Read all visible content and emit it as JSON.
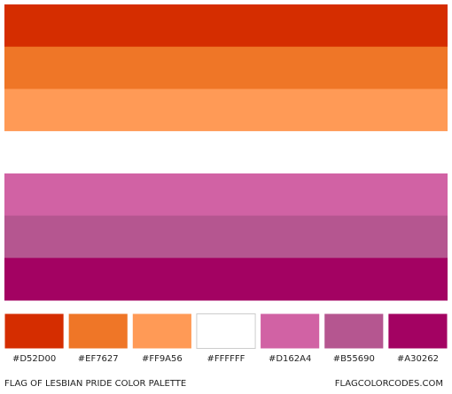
{
  "palette": {
    "colors": [
      "#D52D00",
      "#EF7627",
      "#FF9A56",
      "#FFFFFF",
      "#D162A4",
      "#B55690",
      "#A30262"
    ],
    "caption": "FLAG OF LESBIAN PRIDE COLOR PALETTE",
    "site": "FLAGCOLORCODES.COM"
  }
}
